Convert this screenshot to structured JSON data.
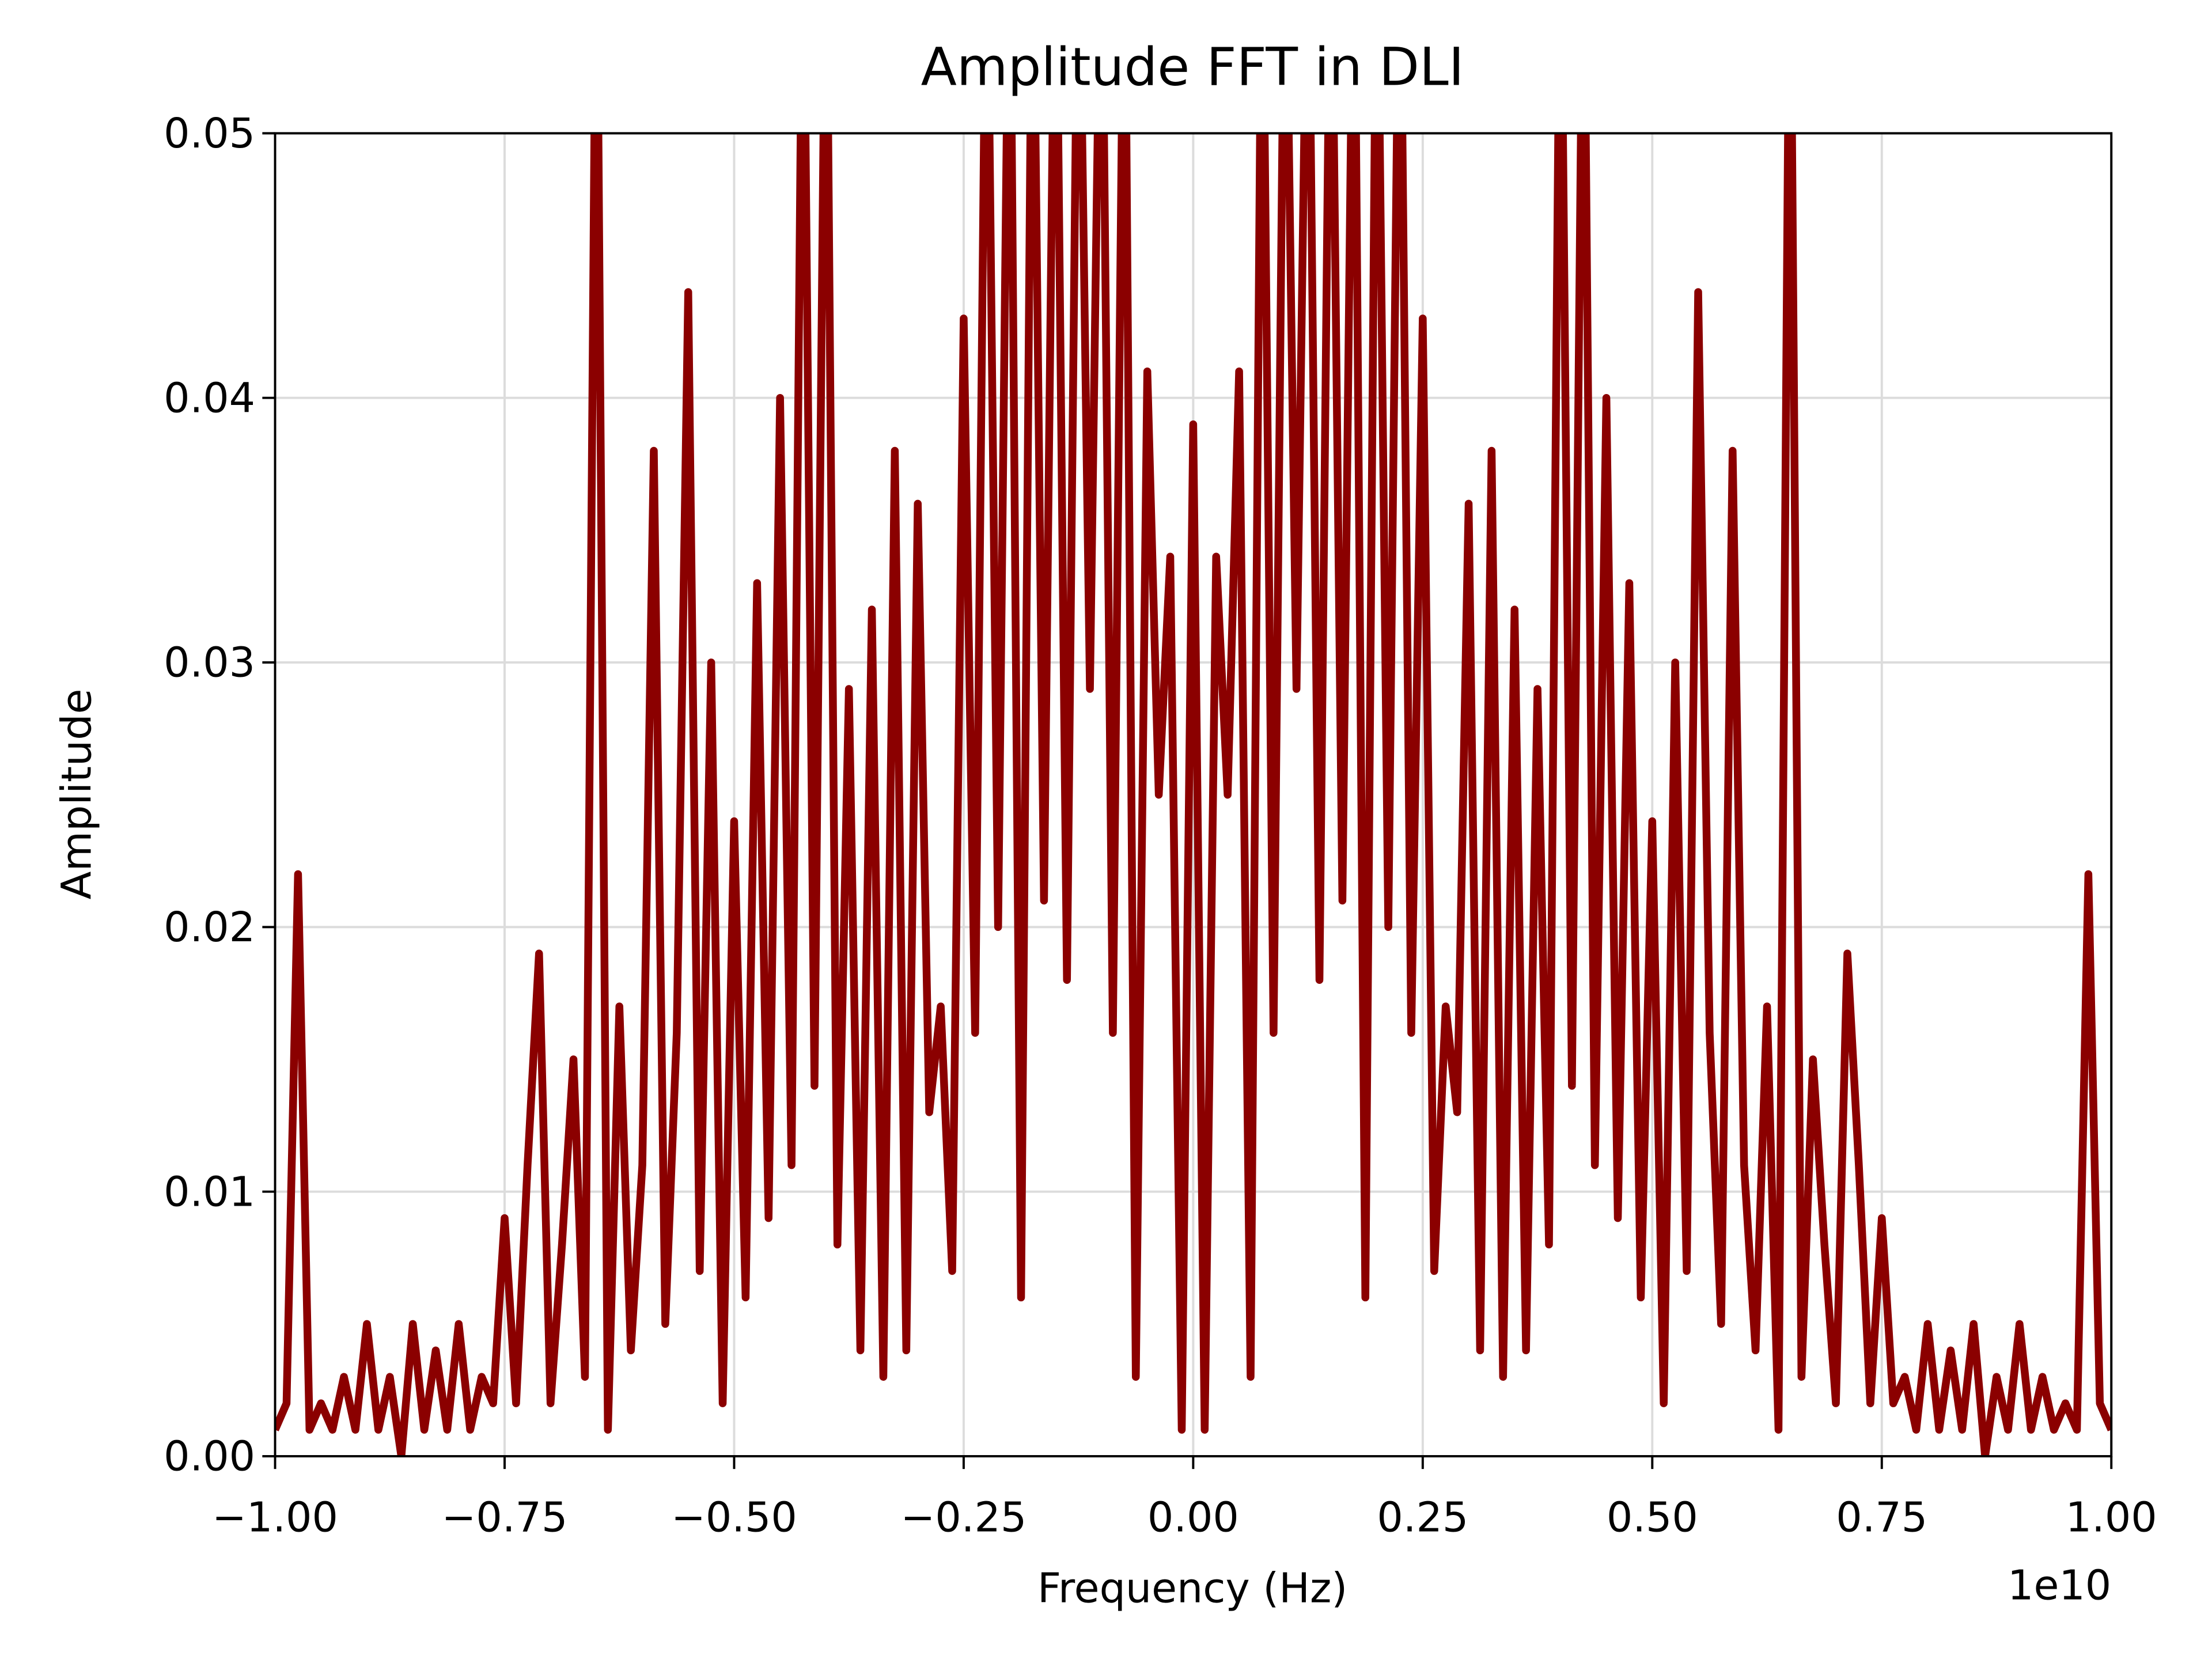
{
  "chart_data": {
    "type": "line",
    "title": "Amplitude FFT in DLI",
    "xlabel": "Frequency (Hz)",
    "ylabel": "Amplitude",
    "x_offset_text": "1e10",
    "xlim": [
      -1,
      1
    ],
    "ylim": [
      0,
      0.05
    ],
    "xticks": [
      {
        "value": -1,
        "label": "−1.00"
      },
      {
        "value": -0.75,
        "label": "−0.75"
      },
      {
        "value": -0.5,
        "label": "−0.50"
      },
      {
        "value": -0.25,
        "label": "−0.25"
      },
      {
        "value": 0,
        "label": "0.00"
      },
      0.25,
      {
        "value": 0.5,
        "label": "0.50"
      },
      0.75,
      {
        "value": 1,
        "label": "1.00"
      }
    ],
    "yticks": [
      {
        "value": 0,
        "label": "0.00"
      },
      0.01,
      0.02,
      0.03,
      0.04,
      0.05
    ],
    "grid": true,
    "x": [
      -1,
      -0.9875,
      -0.975,
      -0.9625,
      -0.95,
      -0.9375,
      -0.925,
      -0.9125,
      -0.9,
      -0.8875,
      -0.875,
      -0.8625,
      -0.85,
      -0.8375,
      -0.825,
      -0.8125,
      -0.8,
      -0.7875,
      -0.775,
      -0.7625,
      -0.75,
      -0.7375,
      -0.725,
      -0.7125,
      -0.7,
      -0.6875,
      -0.675,
      -0.6625,
      -0.65,
      -0.6375,
      -0.625,
      -0.6125,
      -0.6,
      -0.5875,
      -0.575,
      -0.5625,
      -0.55,
      -0.5375,
      -0.525,
      -0.5125,
      -0.5,
      -0.4875,
      -0.475,
      -0.4625,
      -0.45,
      -0.4375,
      -0.425,
      -0.4125,
      -0.4,
      -0.3875,
      -0.375,
      -0.3625,
      -0.35,
      -0.3375,
      -0.325,
      -0.3125,
      -0.3,
      -0.2875,
      -0.275,
      -0.2625,
      -0.25,
      -0.2375,
      -0.225,
      -0.2125,
      -0.2,
      -0.1875,
      -0.175,
      -0.1625,
      -0.15,
      -0.1375,
      -0.125,
      -0.1125,
      -0.1,
      -0.0875,
      -0.075,
      -0.0625,
      -0.05,
      -0.0375,
      -0.025,
      -0.0125,
      0,
      0.0125,
      0.025,
      0.0375,
      0.05,
      0.0625,
      0.075,
      0.0875,
      0.1,
      0.1125,
      0.125,
      0.1375,
      0.15,
      0.1625,
      0.175,
      0.1875,
      0.2,
      0.2125,
      0.225,
      0.2375,
      0.25,
      0.2625,
      0.275,
      0.2875,
      0.3,
      0.3125,
      0.325,
      0.3375,
      0.35,
      0.3625,
      0.375,
      0.3875,
      0.4,
      0.4125,
      0.425,
      0.4375,
      0.45,
      0.4625,
      0.475,
      0.4875,
      0.5,
      0.5125,
      0.525,
      0.5375,
      0.55,
      0.5625,
      0.575,
      0.5875,
      0.6,
      0.6125,
      0.625,
      0.6375,
      0.65,
      0.6625,
      0.675,
      0.6875,
      0.7,
      0.7125,
      0.725,
      0.7375,
      0.75,
      0.7625,
      0.775,
      0.7875,
      0.8,
      0.8125,
      0.825,
      0.8375,
      0.85,
      0.8625,
      0.875,
      0.8875,
      0.9,
      0.9125,
      0.925,
      0.9375,
      0.95,
      0.9625,
      0.975,
      0.9875,
      1
    ],
    "series": [
      {
        "color": "#8b0000",
        "values": [
          0.001,
          0.002,
          0.022,
          0.001,
          0.002,
          0.001,
          0.003,
          0.001,
          0.005,
          0.001,
          0.003,
          0,
          0.005,
          0.001,
          0.004,
          0.001,
          0.005,
          0.001,
          0.003,
          0.002,
          0.009,
          0.002,
          0.011,
          0.019,
          0.002,
          0.008,
          0.015,
          0.003,
          0.06,
          0.001,
          0.017,
          0.004,
          0.011,
          0.038,
          0.005,
          0.016,
          0.044,
          0.007,
          0.03,
          0.002,
          0.024,
          0.006,
          0.033,
          0.009,
          0.04,
          0.011,
          0.06,
          0.014,
          0.06,
          0.008,
          0.029,
          0.004,
          0.032,
          0.003,
          0.038,
          0.004,
          0.036,
          0.013,
          0.017,
          0.007,
          0.043,
          0.016,
          0.06,
          0.02,
          0.06,
          0.006,
          0.06,
          0.021,
          0.06,
          0.018,
          0.06,
          0.029,
          0.06,
          0.016,
          0.06,
          0.003,
          0.041,
          0.025,
          0.034,
          0.001,
          0.039,
          0.001,
          0.034,
          0.025,
          0.041,
          0.003,
          0.06,
          0.016,
          0.06,
          0.029,
          0.06,
          0.018,
          0.06,
          0.021,
          0.06,
          0.006,
          0.06,
          0.02,
          0.06,
          0.016,
          0.043,
          0.007,
          0.017,
          0.013,
          0.036,
          0.004,
          0.038,
          0.003,
          0.032,
          0.004,
          0.029,
          0.008,
          0.06,
          0.014,
          0.06,
          0.011,
          0.04,
          0.009,
          0.033,
          0.006,
          0.024,
          0.002,
          0.03,
          0.007,
          0.044,
          0.016,
          0.005,
          0.038,
          0.011,
          0.004,
          0.017,
          0.001,
          0.06,
          0.003,
          0.015,
          0.008,
          0.002,
          0.019,
          0.011,
          0.002,
          0.009,
          0.002,
          0.003,
          0.001,
          0.005,
          0.001,
          0.004,
          0.001,
          0.005,
          0,
          0.003,
          0.001,
          0.005,
          0.001,
          0.003,
          0.001,
          0.002,
          0.001,
          0.022,
          0.002,
          0.001
        ]
      }
    ]
  }
}
